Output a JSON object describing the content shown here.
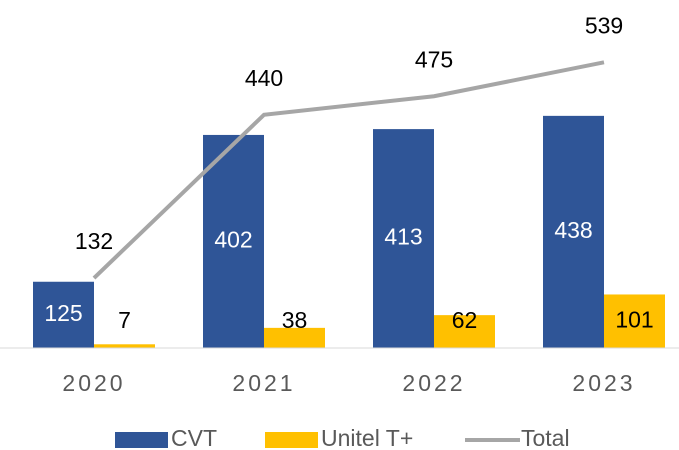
{
  "chart_data": {
    "type": "bar",
    "categories": [
      "2020",
      "2021",
      "2022",
      "2023"
    ],
    "series": [
      {
        "name": "CVT",
        "color": "#2f5597",
        "values": [
          125,
          402,
          413,
          438
        ]
      },
      {
        "name": "Unitel T+",
        "color": "#ffc000",
        "values": [
          7,
          38,
          62,
          101
        ]
      },
      {
        "name": "Total",
        "type": "line",
        "color": "#a6a6a6",
        "values": [
          132,
          440,
          475,
          539
        ]
      }
    ],
    "ylim": [
      0,
      600
    ],
    "grid": false,
    "legend": "bottom"
  }
}
